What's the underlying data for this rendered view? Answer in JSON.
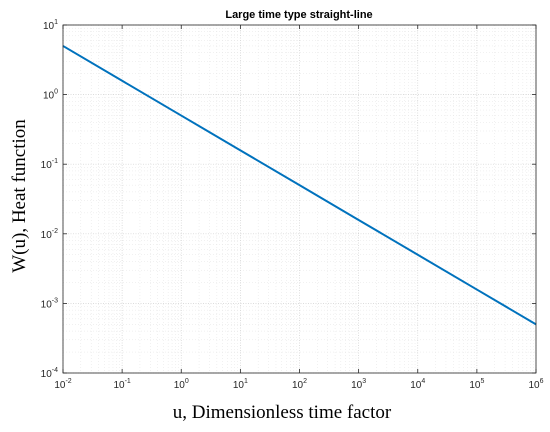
{
  "chart_data": {
    "type": "line",
    "title": "Large time  type straight-line",
    "xlabel": "u, Dimensionless time factor",
    "ylabel": "W(u), Heat function",
    "xscale": "log",
    "yscale": "log",
    "xlim": [
      0.01,
      1000000
    ],
    "ylim": [
      0.0001,
      10
    ],
    "x_ticks": [
      {
        "base": "10",
        "exp": "-2"
      },
      {
        "base": "10",
        "exp": "-1"
      },
      {
        "base": "10",
        "exp": "0"
      },
      {
        "base": "10",
        "exp": "1"
      },
      {
        "base": "10",
        "exp": "2"
      },
      {
        "base": "10",
        "exp": "3"
      },
      {
        "base": "10",
        "exp": "4"
      },
      {
        "base": "10",
        "exp": "5"
      },
      {
        "base": "10",
        "exp": "6"
      }
    ],
    "y_ticks": [
      {
        "base": "10",
        "exp": "1"
      },
      {
        "base": "10",
        "exp": "0"
      },
      {
        "base": "10",
        "exp": "-1"
      },
      {
        "base": "10",
        "exp": "-2"
      },
      {
        "base": "10",
        "exp": "-3"
      },
      {
        "base": "10",
        "exp": "-4"
      }
    ],
    "grid": true,
    "minor_grid": true,
    "series": [
      {
        "x": [
          0.01,
          0.1,
          1,
          10,
          100,
          1000,
          10000,
          100000,
          1000000
        ],
        "y": [
          5.0,
          1.58,
          0.5,
          0.158,
          0.05,
          0.0158,
          0.005,
          0.00158,
          0.0005
        ],
        "color": "#0072BD"
      }
    ]
  }
}
